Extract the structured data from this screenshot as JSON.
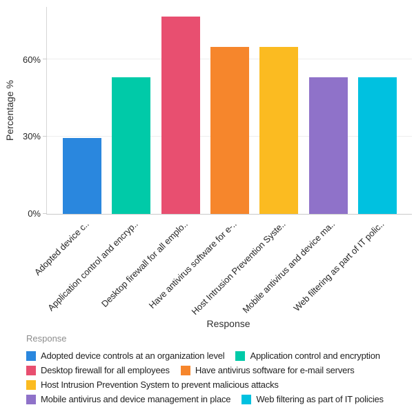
{
  "chart_data": {
    "type": "bar",
    "title": "",
    "xlabel": "Response",
    "ylabel": "Percentage %",
    "ylim": [
      0,
      80
    ],
    "grid": "horizontal",
    "legend_position": "bottom",
    "yticks": [
      {
        "value": 0,
        "label": "0%"
      },
      {
        "value": 30,
        "label": "30%"
      },
      {
        "value": 60,
        "label": "60%"
      }
    ],
    "categories": [
      "Adopted device controls at an organization level",
      "Application control and encryption",
      "Desktop firewall for all employees",
      "Have antivirus software for e-mail servers",
      "Host Intrusion Prevention System to prevent malicious attacks",
      "Mobile antivirus and device management in place",
      "Web filtering as part of IT policies"
    ],
    "tick_labels": [
      "Adopted device c..",
      "Application control and encryp..",
      "Desktop firewall for all emplo..",
      "Have antivirus software for e-..",
      "Host Intrusion Prevention Syste..",
      "Mobile antivirus and device ma..",
      "Web filtering as part of IT polic.."
    ],
    "values": [
      29.4,
      53.1,
      76.8,
      65.1,
      65.1,
      53.1,
      53.1
    ],
    "colors": [
      "#2A87DE",
      "#00CAA8",
      "#E84F70",
      "#F6862C",
      "#FBBB21",
      "#8F72C9",
      "#00C1E0"
    ]
  },
  "legend": {
    "title": "Response"
  }
}
